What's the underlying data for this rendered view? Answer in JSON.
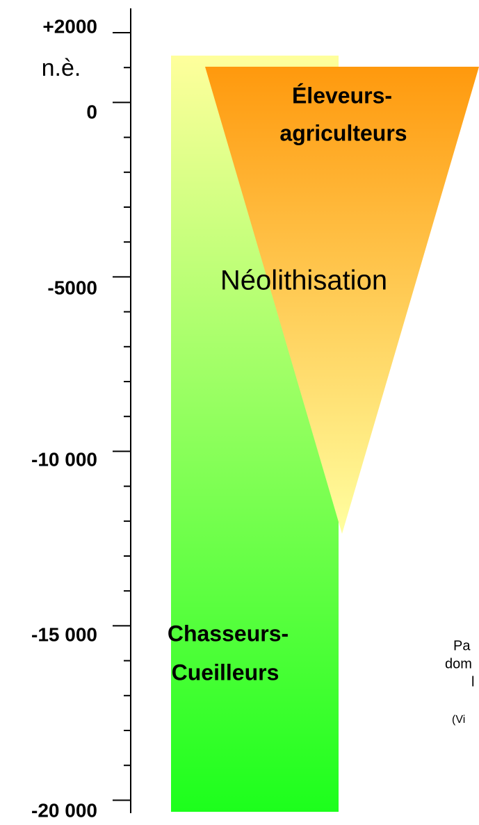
{
  "axis": {
    "labels": [
      "+2000",
      "n.è.",
      "0",
      "-5000",
      "-10 000",
      "-15 000",
      "-20 000"
    ]
  },
  "zones": {
    "top_title": [
      "Éleveurs-",
      "agriculteurs"
    ],
    "middle": "Néolithisation",
    "bottom_title": [
      "Chasseurs-",
      "Cueilleurs"
    ]
  },
  "side_text": [
    "Pa",
    "dom",
    "l",
    "(Vi"
  ]
}
